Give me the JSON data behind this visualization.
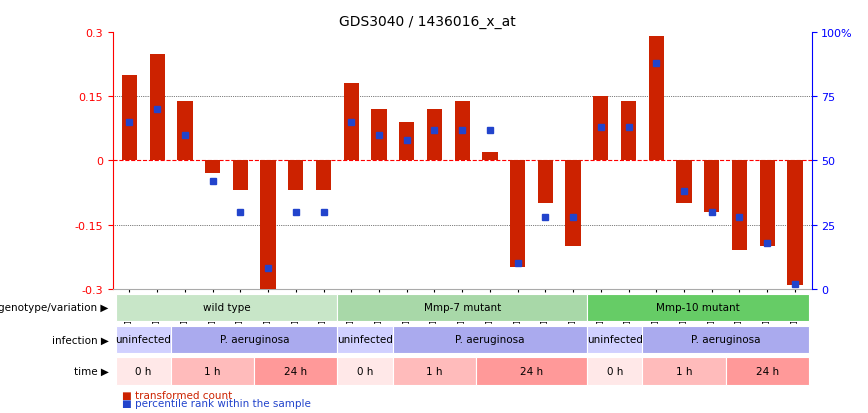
{
  "title": "GDS3040 / 1436016_x_at",
  "samples": [
    "GSM196062",
    "GSM196063",
    "GSM196064",
    "GSM196065",
    "GSM196066",
    "GSM196067",
    "GSM196068",
    "GSM196069",
    "GSM196070",
    "GSM196071",
    "GSM196072",
    "GSM196073",
    "GSM196074",
    "GSM196075",
    "GSM196076",
    "GSM196077",
    "GSM196078",
    "GSM196079",
    "GSM196080",
    "GSM196081",
    "GSM196082",
    "GSM196083",
    "GSM196084",
    "GSM196085",
    "GSM196086"
  ],
  "red_values": [
    0.2,
    0.25,
    0.14,
    -0.03,
    -0.07,
    -0.3,
    -0.07,
    -0.07,
    0.18,
    0.12,
    0.09,
    0.12,
    0.14,
    0.02,
    -0.25,
    -0.1,
    -0.2,
    0.15,
    0.14,
    0.29,
    -0.1,
    -0.12,
    -0.21,
    -0.2,
    -0.29
  ],
  "blue_values": [
    0.65,
    0.7,
    0.6,
    0.42,
    0.3,
    0.08,
    0.3,
    0.3,
    0.65,
    0.6,
    0.58,
    0.62,
    0.62,
    0.62,
    0.1,
    0.28,
    0.28,
    0.63,
    0.63,
    0.88,
    0.38,
    0.3,
    0.28,
    0.18,
    0.02
  ],
  "genotype_groups": [
    {
      "label": "wild type",
      "start": 0,
      "end": 8,
      "color": "#c8e6c8"
    },
    {
      "label": "Mmp-7 mutant",
      "start": 8,
      "end": 17,
      "color": "#a8d8a8"
    },
    {
      "label": "Mmp-10 mutant",
      "start": 17,
      "end": 25,
      "color": "#66cc66"
    }
  ],
  "infection_groups": [
    {
      "label": "uninfected",
      "start": 0,
      "end": 2,
      "color": "#d0d0ff"
    },
    {
      "label": "P. aeruginosa",
      "start": 2,
      "end": 8,
      "color": "#aaaaee"
    },
    {
      "label": "uninfected",
      "start": 8,
      "end": 10,
      "color": "#d0d0ff"
    },
    {
      "label": "P. aeruginosa",
      "start": 10,
      "end": 17,
      "color": "#aaaaee"
    },
    {
      "label": "uninfected",
      "start": 17,
      "end": 19,
      "color": "#d0d0ff"
    },
    {
      "label": "P. aeruginosa",
      "start": 19,
      "end": 25,
      "color": "#aaaaee"
    }
  ],
  "time_groups": [
    {
      "label": "0 h",
      "start": 0,
      "end": 2,
      "color": "#ffe8e8"
    },
    {
      "label": "1 h",
      "start": 2,
      "end": 5,
      "color": "#ffbbbb"
    },
    {
      "label": "24 h",
      "start": 5,
      "end": 8,
      "color": "#ff9999"
    },
    {
      "label": "0 h",
      "start": 8,
      "end": 10,
      "color": "#ffe8e8"
    },
    {
      "label": "1 h",
      "start": 10,
      "end": 13,
      "color": "#ffbbbb"
    },
    {
      "label": "24 h",
      "start": 13,
      "end": 17,
      "color": "#ff9999"
    },
    {
      "label": "0 h",
      "start": 17,
      "end": 19,
      "color": "#ffe8e8"
    },
    {
      "label": "1 h",
      "start": 19,
      "end": 22,
      "color": "#ffbbbb"
    },
    {
      "label": "24 h",
      "start": 22,
      "end": 25,
      "color": "#ff9999"
    }
  ],
  "ylim": [
    -0.3,
    0.3
  ],
  "yticks": [
    -0.3,
    -0.15,
    0.0,
    0.15,
    0.3
  ],
  "right_yticks": [
    0,
    25,
    50,
    75,
    100
  ],
  "right_yticklabels": [
    "0",
    "25",
    "50",
    "75",
    "100%"
  ],
  "bar_color": "#cc2200",
  "dot_color": "#2244cc",
  "background_color": "#ffffff",
  "row_labels": [
    "genotype/variation",
    "infection",
    "time"
  ]
}
